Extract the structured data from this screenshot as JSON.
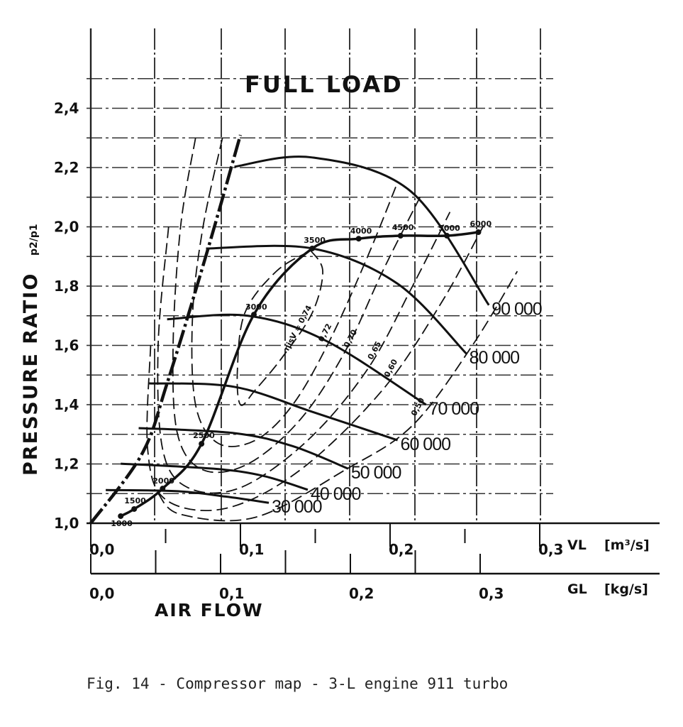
{
  "chart_data": {
    "type": "line",
    "title": "FULL LOAD",
    "caption": "Fig. 14 - Compressor map - 3-L engine 911 turbo",
    "ylabel": "PRESSURE RATIO",
    "ylabel_symbol": "p2/p1",
    "xlabel": "AIR FLOW",
    "x_axis_primary": {
      "symbol": "VL",
      "unit": "[m³/s]",
      "range": [
        0.0,
        0.3
      ],
      "ticks": [
        "0,0",
        "0,1",
        "0,2",
        "0,3"
      ]
    },
    "x_axis_secondary": {
      "symbol": "GL",
      "unit": "[kg/s]",
      "range": [
        0.0,
        0.3
      ],
      "ticks": [
        "0,0",
        "0,1",
        "0,2",
        "0,3"
      ]
    },
    "ylim": [
      1.0,
      2.4
    ],
    "yticks": [
      "1,0",
      "1,2",
      "1,4",
      "1,6",
      "1,8",
      "2,0",
      "2,2",
      "2,4"
    ],
    "grid": true,
    "speed_lines": [
      {
        "name": "30 000",
        "points": [
          [
            0.01,
            1.112
          ],
          [
            0.058,
            1.108
          ],
          [
            0.09,
            1.09
          ],
          [
            0.119,
            1.069
          ]
        ]
      },
      {
        "name": "40 000",
        "points": [
          [
            0.02,
            1.201
          ],
          [
            0.082,
            1.184
          ],
          [
            0.115,
            1.16
          ],
          [
            0.145,
            1.113
          ]
        ]
      },
      {
        "name": "50 000",
        "points": [
          [
            0.032,
            1.321
          ],
          [
            0.096,
            1.304
          ],
          [
            0.135,
            1.26
          ],
          [
            0.172,
            1.184
          ]
        ]
      },
      {
        "name": "60 000",
        "points": [
          [
            0.039,
            1.472
          ],
          [
            0.096,
            1.46
          ],
          [
            0.148,
            1.376
          ],
          [
            0.205,
            1.28
          ]
        ]
      },
      {
        "name": "70 000",
        "points": [
          [
            0.051,
            1.688
          ],
          [
            0.105,
            1.7
          ],
          [
            0.157,
            1.616
          ],
          [
            0.224,
            1.4
          ]
        ]
      },
      {
        "name": "80 000",
        "points": [
          [
            0.077,
            1.927
          ],
          [
            0.148,
            1.927
          ],
          [
            0.205,
            1.808
          ],
          [
            0.251,
            1.572
          ]
        ]
      },
      {
        "name": "90 000",
        "points": [
          [
            0.096,
            2.203
          ],
          [
            0.148,
            2.234
          ],
          [
            0.214,
            2.119
          ],
          [
            0.266,
            1.736
          ]
        ]
      }
    ],
    "surge_line": [
      [
        0.0,
        1.0
      ],
      [
        0.034,
        1.232
      ],
      [
        0.051,
        1.472
      ],
      [
        0.077,
        1.903
      ],
      [
        0.1,
        2.31
      ]
    ],
    "operating_line": [
      {
        "rpm": "1000",
        "v": 0.02,
        "pr": 1.024
      },
      {
        "rpm": "1500",
        "v": 0.029,
        "pr": 1.048
      },
      {
        "rpm": "2000",
        "v": 0.048,
        "pr": 1.117
      },
      {
        "rpm": "2500",
        "v": 0.074,
        "pr": 1.268
      },
      {
        "rpm": "3000",
        "v": 0.109,
        "pr": 1.704
      },
      {
        "rpm": "3500",
        "v": 0.148,
        "pr": 1.927
      },
      {
        "rpm": "4000",
        "v": 0.179,
        "pr": 1.96
      },
      {
        "rpm": "4500",
        "v": 0.207,
        "pr": 1.97
      },
      {
        "rpm": "5000",
        "v": 0.238,
        "pr": 1.97
      },
      {
        "rpm": "6000",
        "v": 0.259,
        "pr": 1.982
      }
    ],
    "efficiency_contours": [
      {
        "name": "ηisV = 0,74",
        "label_at": [
          0.132,
          1.58
        ],
        "points": [
          [
            0.147,
            1.92
          ],
          [
            0.155,
            1.85
          ],
          [
            0.148,
            1.71
          ],
          [
            0.128,
            1.56
          ],
          [
            0.11,
            1.45
          ],
          [
            0.1,
            1.4
          ],
          [
            0.098,
            1.52
          ],
          [
            0.103,
            1.71
          ],
          [
            0.124,
            1.85
          ],
          [
            0.147,
            1.92
          ]
        ]
      },
      {
        "name": "0,72",
        "label_at": [
          0.155,
          1.61
        ],
        "points": [
          [
            0.088,
            2.3
          ],
          [
            0.075,
            2.0
          ],
          [
            0.068,
            1.7
          ],
          [
            0.07,
            1.4
          ],
          [
            0.085,
            1.27
          ],
          [
            0.11,
            1.28
          ],
          [
            0.135,
            1.4
          ],
          [
            0.16,
            1.62
          ],
          [
            0.185,
            1.9
          ],
          [
            0.205,
            2.15
          ]
        ]
      },
      {
        "name": "0,70",
        "label_at": [
          0.172,
          1.59
        ],
        "points": [
          [
            0.07,
            2.3
          ],
          [
            0.06,
            2.0
          ],
          [
            0.055,
            1.6
          ],
          [
            0.058,
            1.3
          ],
          [
            0.075,
            1.18
          ],
          [
            0.105,
            1.2
          ],
          [
            0.14,
            1.35
          ],
          [
            0.17,
            1.58
          ],
          [
            0.195,
            1.85
          ],
          [
            0.22,
            2.1
          ]
        ]
      },
      {
        "name": "0,65",
        "label_at": [
          0.188,
          1.55
        ],
        "points": [
          [
            0.052,
            2.0
          ],
          [
            0.045,
            1.6
          ],
          [
            0.048,
            1.25
          ],
          [
            0.065,
            1.12
          ],
          [
            0.1,
            1.12
          ],
          [
            0.145,
            1.28
          ],
          [
            0.185,
            1.52
          ],
          [
            0.215,
            1.8
          ],
          [
            0.24,
            2.05
          ]
        ]
      },
      {
        "name": "0,60",
        "label_at": [
          0.199,
          1.49
        ],
        "points": [
          [
            0.04,
            1.6
          ],
          [
            0.038,
            1.25
          ],
          [
            0.05,
            1.08
          ],
          [
            0.09,
            1.05
          ],
          [
            0.14,
            1.18
          ],
          [
            0.195,
            1.45
          ],
          [
            0.235,
            1.75
          ],
          [
            0.262,
            2.0
          ]
        ]
      },
      {
        "name": "0,50",
        "label_at": [
          0.217,
          1.36
        ],
        "points": [
          [
            0.045,
            1.1
          ],
          [
            0.06,
            1.03
          ],
          [
            0.11,
            1.02
          ],
          [
            0.17,
            1.18
          ],
          [
            0.215,
            1.33
          ],
          [
            0.255,
            1.6
          ],
          [
            0.285,
            1.85
          ]
        ]
      }
    ]
  }
}
